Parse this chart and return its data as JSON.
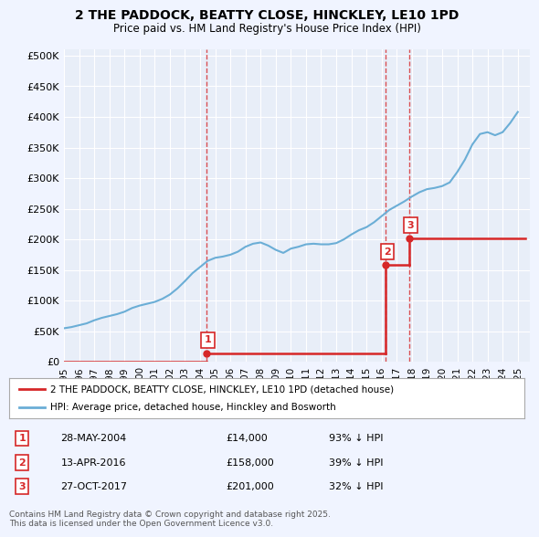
{
  "title": "2 THE PADDOCK, BEATTY CLOSE, HINCKLEY, LE10 1PD",
  "subtitle": "Price paid vs. HM Land Registry's House Price Index (HPI)",
  "background_color": "#f0f4ff",
  "plot_bg_color": "#e8eef8",
  "hpi_color": "#6baed6",
  "price_color": "#d62728",
  "marker_color": "#d62728",
  "ylabel": "",
  "xlabel": "",
  "ylim": [
    0,
    510000
  ],
  "yticks": [
    0,
    50000,
    100000,
    150000,
    200000,
    250000,
    300000,
    350000,
    400000,
    450000,
    500000
  ],
  "ytick_labels": [
    "£0",
    "£50K",
    "£100K",
    "£150K",
    "£200K",
    "£250K",
    "£300K",
    "£350K",
    "£400K",
    "£450K",
    "£500K"
  ],
  "xlim_start": 1995.0,
  "xlim_end": 2025.8,
  "xticks": [
    1995,
    1996,
    1997,
    1998,
    1999,
    2000,
    2001,
    2002,
    2003,
    2004,
    2005,
    2006,
    2007,
    2008,
    2009,
    2010,
    2011,
    2012,
    2013,
    2014,
    2015,
    2016,
    2017,
    2018,
    2019,
    2020,
    2021,
    2022,
    2023,
    2024,
    2025
  ],
  "sale_events": [
    {
      "num": 1,
      "date_label": "28-MAY-2004",
      "year": 2004.41,
      "price": 14000,
      "pct": "93%",
      "direction": "↓"
    },
    {
      "num": 2,
      "date_label": "13-APR-2016",
      "year": 2016.28,
      "price": 158000,
      "pct": "39%",
      "direction": "↓"
    },
    {
      "num": 3,
      "date_label": "27-OCT-2017",
      "year": 2017.82,
      "price": 201000,
      "pct": "32%",
      "direction": "↓"
    }
  ],
  "hpi_data": {
    "years": [
      1995.0,
      1995.5,
      1996.0,
      1996.5,
      1997.0,
      1997.5,
      1998.0,
      1998.5,
      1999.0,
      1999.5,
      2000.0,
      2000.5,
      2001.0,
      2001.5,
      2002.0,
      2002.5,
      2003.0,
      2003.5,
      2004.0,
      2004.5,
      2005.0,
      2005.5,
      2006.0,
      2006.5,
      2007.0,
      2007.5,
      2008.0,
      2008.5,
      2009.0,
      2009.5,
      2010.0,
      2010.5,
      2011.0,
      2011.5,
      2012.0,
      2012.5,
      2013.0,
      2013.5,
      2014.0,
      2014.5,
      2015.0,
      2015.5,
      2016.0,
      2016.5,
      2017.0,
      2017.5,
      2018.0,
      2018.5,
      2019.0,
      2019.5,
      2020.0,
      2020.5,
      2021.0,
      2021.5,
      2022.0,
      2022.5,
      2023.0,
      2023.5,
      2024.0,
      2024.5,
      2025.0
    ],
    "values": [
      55000,
      57000,
      60000,
      63000,
      68000,
      72000,
      75000,
      78000,
      82000,
      88000,
      92000,
      95000,
      98000,
      103000,
      110000,
      120000,
      132000,
      145000,
      155000,
      165000,
      170000,
      172000,
      175000,
      180000,
      188000,
      193000,
      195000,
      190000,
      183000,
      178000,
      185000,
      188000,
      192000,
      193000,
      192000,
      192000,
      194000,
      200000,
      208000,
      215000,
      220000,
      228000,
      238000,
      248000,
      255000,
      262000,
      270000,
      277000,
      282000,
      284000,
      287000,
      293000,
      310000,
      330000,
      355000,
      372000,
      375000,
      370000,
      375000,
      390000,
      408000
    ]
  },
  "price_paid_segments": [
    {
      "years": [
        1995.0,
        2004.41
      ],
      "values": [
        0,
        0
      ]
    },
    {
      "years": [
        2004.41,
        2016.28
      ],
      "values": [
        14000,
        14000
      ]
    },
    {
      "years": [
        2016.28,
        2016.28
      ],
      "values": [
        14000,
        158000
      ]
    },
    {
      "years": [
        2016.28,
        2017.82
      ],
      "values": [
        158000,
        158000
      ]
    },
    {
      "years": [
        2017.82,
        2017.82
      ],
      "values": [
        158000,
        201000
      ]
    },
    {
      "years": [
        2017.82,
        2025.5
      ],
      "values": [
        201000,
        201000
      ]
    }
  ],
  "legend_label_red": "2 THE PADDOCK, BEATTY CLOSE, HINCKLEY, LE10 1PD (detached house)",
  "legend_label_blue": "HPI: Average price, detached house, Hinckley and Bosworth",
  "footnote": "Contains HM Land Registry data © Crown copyright and database right 2025.\nThis data is licensed under the Open Government Licence v3.0.",
  "grid_color": "#ffffff"
}
